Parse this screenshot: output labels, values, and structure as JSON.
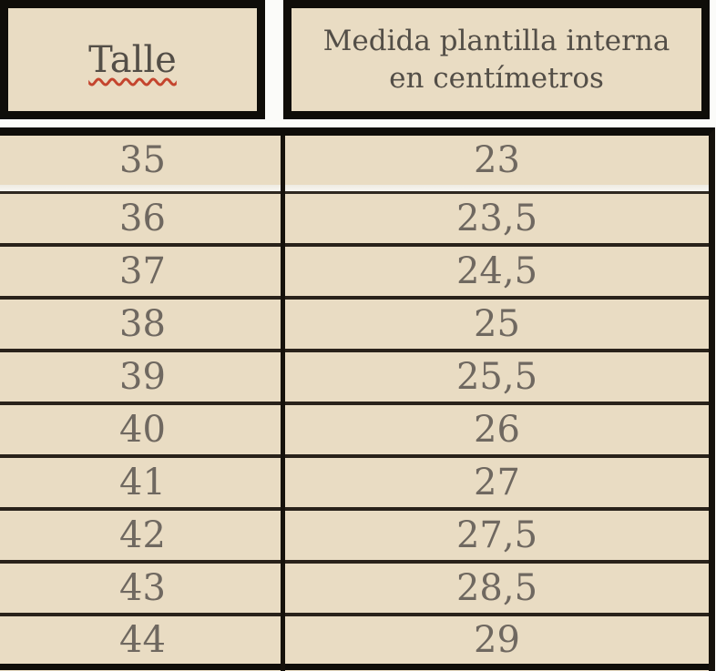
{
  "document": {
    "header": {
      "talle": {
        "label": "Talle",
        "spellcheck_underline": true,
        "spellcheck_color": "#c4452e"
      },
      "medida": {
        "label": "Medida plantilla interna en centímetros",
        "lines": [
          "Medida plantilla interna",
          "en centímetros"
        ]
      }
    },
    "rows": [
      {
        "talle": "35",
        "medida": "23"
      },
      {
        "talle": "36",
        "medida": "23,5"
      },
      {
        "talle": "37",
        "medida": "24,5"
      },
      {
        "talle": "38",
        "medida": "25"
      },
      {
        "talle": "39",
        "medida": "25,5"
      },
      {
        "talle": "40",
        "medida": "26"
      },
      {
        "talle": "41",
        "medida": "27"
      },
      {
        "talle": "42",
        "medida": "27,5"
      },
      {
        "talle": "43",
        "medida": "28,5"
      },
      {
        "talle": "44",
        "medida": "29"
      }
    ]
  },
  "chart_data": {
    "type": "table",
    "columns": [
      "Talle",
      "Medida plantilla interna en centímetros"
    ],
    "rows": [
      [
        "35",
        "23"
      ],
      [
        "36",
        "23,5"
      ],
      [
        "37",
        "24,5"
      ],
      [
        "38",
        "25"
      ],
      [
        "39",
        "25,5"
      ],
      [
        "40",
        "26"
      ],
      [
        "41",
        "27"
      ],
      [
        "42",
        "27,5"
      ],
      [
        "43",
        "28,5"
      ],
      [
        "44",
        "29"
      ]
    ]
  },
  "colors": {
    "cell_background": "#e9dcc3",
    "border_black": "#0f0d09",
    "separator": "#29221a",
    "value_text": "#6f6860",
    "header_text": "#534e47",
    "spellcheck_red": "#c4452e",
    "gap_white": "#fbfbf9"
  }
}
